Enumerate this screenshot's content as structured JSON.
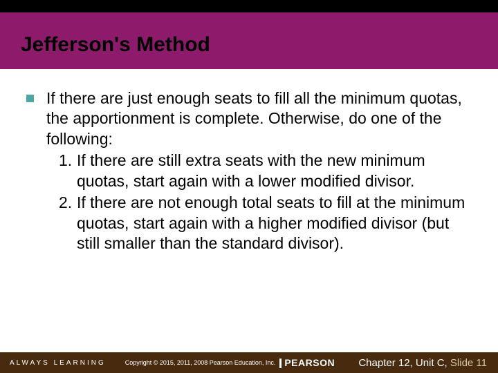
{
  "header": {
    "title": "Jefferson's Method",
    "bg_color": "#8e1a6b",
    "strip_color": "#000000",
    "title_color": "#000000",
    "title_fontsize": 30
  },
  "bullet": {
    "color": "#4ea6a6",
    "size": 11
  },
  "body": {
    "intro": "If there are just enough seats to fill all the minimum quotas, the apportionment is complete. Otherwise, do one of the following:",
    "items": [
      {
        "n": "1.",
        "text": "If there are still extra seats with the new minimum quotas, start again with a lower modified divisor."
      },
      {
        "n": "2.",
        "text": "If there are not enough total seats to fill at the minimum quotas, start again with a higher modified divisor (but still smaller than the standard divisor)."
      }
    ],
    "fontsize": 23,
    "color": "#000000"
  },
  "footer": {
    "bg_color": "#482b0f",
    "always_learning": "ALWAYS LEARNING",
    "copyright": "Copyright © 2015, 2011, 2008 Pearson Education, Inc.",
    "logo": "PEARSON",
    "chapter": "Chapter 12, Unit C,",
    "slide": "Slide 11",
    "text_color": "#ffffff",
    "slide_color": "#d6c9a8"
  }
}
